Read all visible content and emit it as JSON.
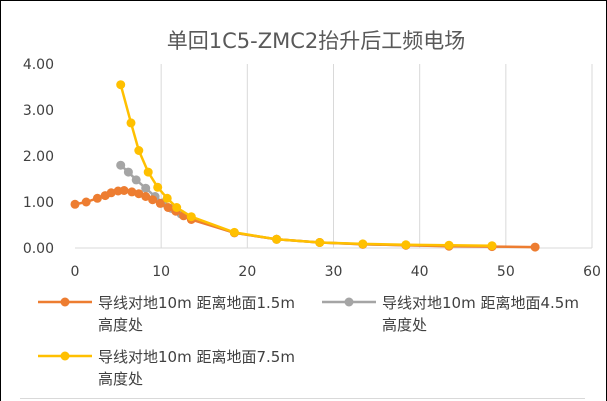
{
  "chart_data": {
    "type": "line",
    "title": "单回1C5-ZMC2抬升后工频电场",
    "xlabel": "",
    "ylabel": "",
    "xlim": [
      0,
      60
    ],
    "ylim": [
      0,
      4
    ],
    "x_ticks": [
      "0",
      "10",
      "20",
      "30",
      "40",
      "50",
      "60"
    ],
    "y_ticks": [
      "0.00",
      "1.00",
      "2.00",
      "3.00",
      "4.00"
    ],
    "grid": "vertical",
    "legend_position": "bottom",
    "series": [
      {
        "name": "导线对地10m 距离地面1.5m 高度处",
        "name_lines": [
          "导线对地10m 距离地面1.5m",
          "高度处"
        ],
        "color": "#ed7d31",
        "points": [
          [
            0,
            0.95
          ],
          [
            1.3,
            1.0
          ],
          [
            2.6,
            1.08
          ],
          [
            3.5,
            1.14
          ],
          [
            4.2,
            1.2
          ],
          [
            5.0,
            1.24
          ],
          [
            5.7,
            1.25
          ],
          [
            6.6,
            1.22
          ],
          [
            7.4,
            1.18
          ],
          [
            8.2,
            1.12
          ],
          [
            9.0,
            1.05
          ],
          [
            9.9,
            0.97
          ],
          [
            10.8,
            0.88
          ],
          [
            11.7,
            0.8
          ],
          [
            12.6,
            0.7
          ],
          [
            13.5,
            0.62
          ],
          [
            18.5,
            0.33
          ],
          [
            23.4,
            0.19
          ],
          [
            28.4,
            0.12
          ],
          [
            33.4,
            0.08
          ],
          [
            38.4,
            0.06
          ],
          [
            43.4,
            0.04
          ],
          [
            48.4,
            0.03
          ],
          [
            53.4,
            0.02
          ]
        ]
      },
      {
        "name": "导线对地10m 距离地面4.5m 高度处",
        "name_lines": [
          "导线对地10m 距离地面4.5m",
          "高度处"
        ],
        "color": "#a5a5a5",
        "points": [
          [
            5.3,
            1.8
          ],
          [
            6.2,
            1.65
          ],
          [
            7.1,
            1.48
          ],
          [
            8.2,
            1.3
          ],
          [
            9.3,
            1.12
          ],
          [
            10.2,
            0.98
          ],
          [
            11.2,
            0.86
          ],
          [
            12.3,
            0.74
          ],
          [
            13.5,
            0.64
          ],
          [
            18.5,
            0.33
          ],
          [
            23.4,
            0.19
          ],
          [
            28.4,
            0.12
          ],
          [
            33.4,
            0.08
          ],
          [
            38.4,
            0.06
          ],
          [
            43.4,
            0.05
          ],
          [
            48.4,
            0.04
          ]
        ]
      },
      {
        "name": "导线对地10m 距离地面7.5m 高度处",
        "name_lines": [
          "导线对地10m 距离地面7.5m",
          "高度处"
        ],
        "color": "#ffc000",
        "points": [
          [
            5.3,
            3.55
          ],
          [
            6.5,
            2.72
          ],
          [
            7.4,
            2.12
          ],
          [
            8.5,
            1.65
          ],
          [
            9.6,
            1.32
          ],
          [
            10.7,
            1.08
          ],
          [
            11.8,
            0.88
          ],
          [
            13.5,
            0.68
          ],
          [
            18.5,
            0.34
          ],
          [
            23.4,
            0.19
          ],
          [
            28.4,
            0.12
          ],
          [
            33.4,
            0.09
          ],
          [
            38.4,
            0.07
          ],
          [
            43.4,
            0.06
          ],
          [
            48.4,
            0.05
          ]
        ]
      }
    ]
  }
}
